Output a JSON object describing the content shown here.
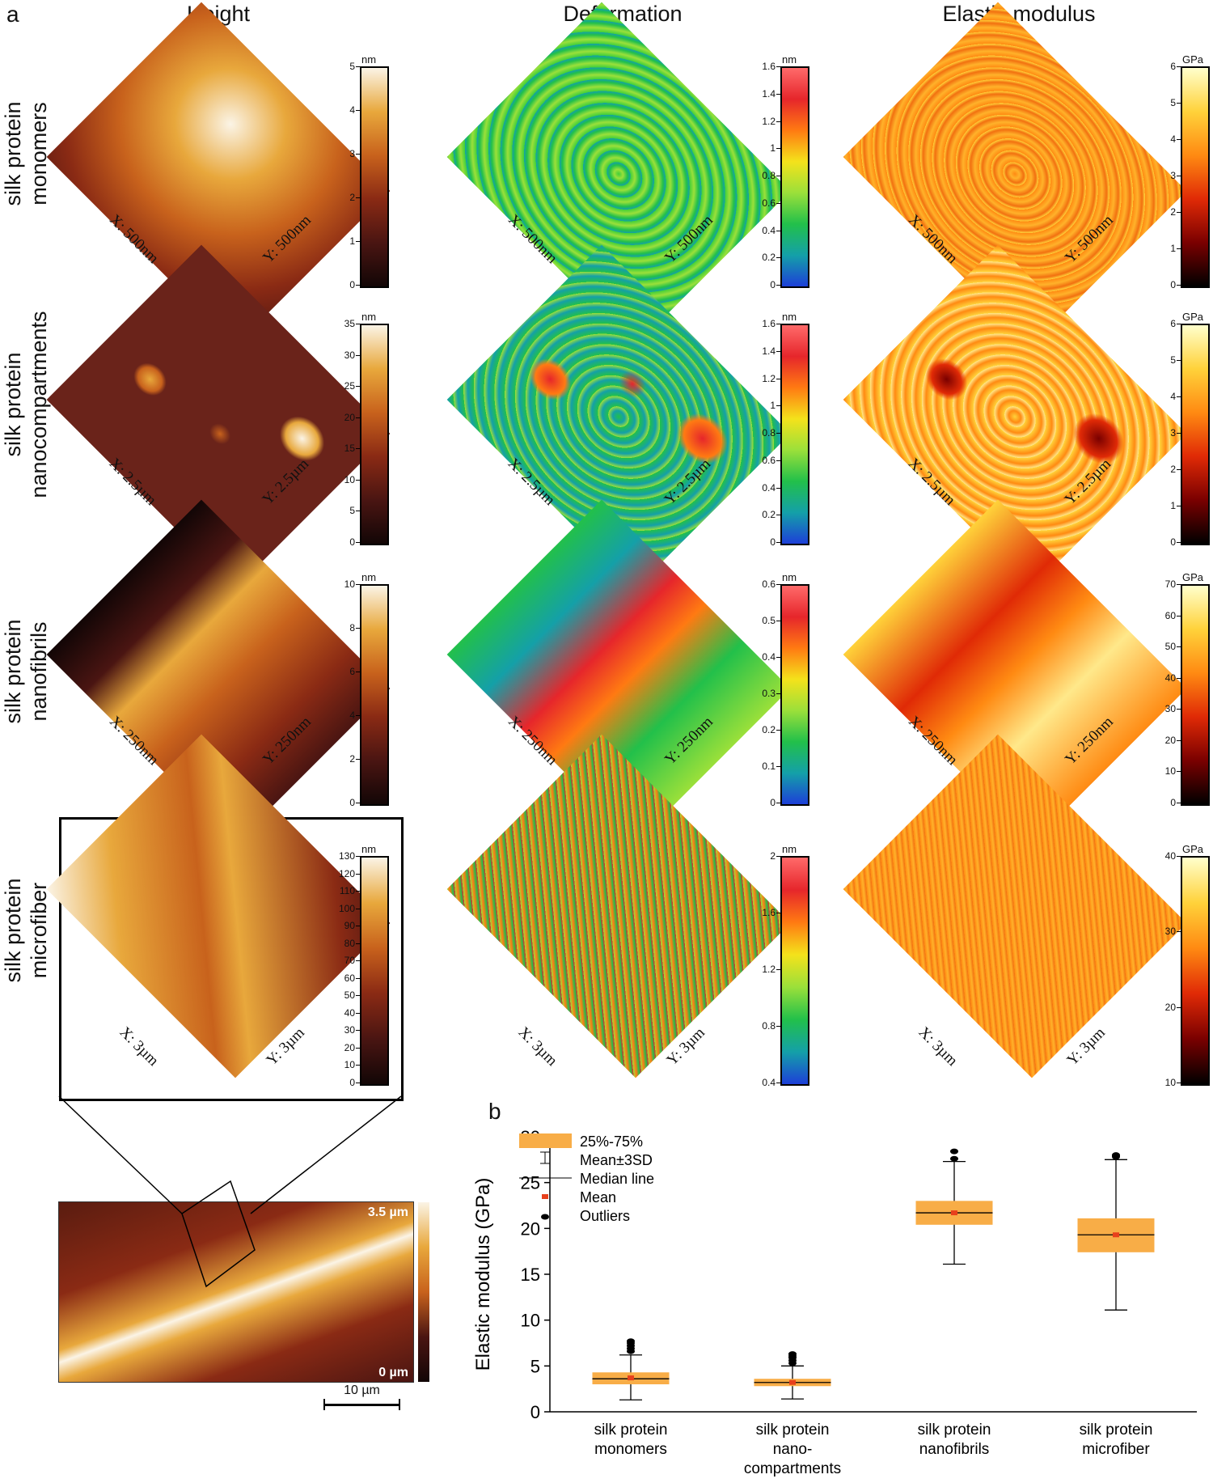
{
  "panel_a_label": "a",
  "panel_b_label": "b",
  "columns": [
    {
      "title": "Height"
    },
    {
      "title": "Deformation"
    },
    {
      "title": "Elastic modulus"
    }
  ],
  "rows": [
    {
      "label_line1": "silk protein",
      "label_line2": "monomers",
      "x_axis": "X: 500nm",
      "y_axis": "Y: 500nm",
      "height_bar": {
        "unit": "nm",
        "ticks": [
          "5",
          "4",
          "3",
          "2",
          "1",
          "0"
        ]
      },
      "deform_bar": {
        "unit": "nm",
        "ticks": [
          "1.6",
          "1.4",
          "1.2",
          "1",
          "0.8",
          "0.6",
          "0.4",
          "0.2",
          "0"
        ]
      },
      "modulus_bar": {
        "unit": "GPa",
        "ticks": [
          "6",
          "5",
          "4",
          "3",
          "2",
          "1",
          "0"
        ]
      }
    },
    {
      "label_line1": "silk protein",
      "label_line2": "nanocompartments",
      "x_axis": "X: 2.5µm",
      "y_axis": "Y: 2.5µm",
      "height_bar": {
        "unit": "nm",
        "ticks": [
          "35",
          "30",
          "25",
          "20",
          "15",
          "10",
          "5",
          "0"
        ]
      },
      "deform_bar": {
        "unit": "nm",
        "ticks": [
          "1.6",
          "1.4",
          "1.2",
          "1",
          "0.8",
          "0.6",
          "0.4",
          "0.2",
          "0"
        ]
      },
      "modulus_bar": {
        "unit": "GPa",
        "ticks": [
          "6",
          "5",
          "4",
          "3",
          "2",
          "1",
          "0"
        ]
      }
    },
    {
      "label_line1": "silk protein",
      "label_line2": "nanofibrils",
      "x_axis": "X: 250nm",
      "y_axis": "Y: 250nm",
      "height_bar": {
        "unit": "nm",
        "ticks": [
          "10",
          "8",
          "6",
          "4",
          "2",
          "0"
        ]
      },
      "deform_bar": {
        "unit": "nm",
        "ticks": [
          "0.6",
          "0.5",
          "0.4",
          "0.3",
          "0.2",
          "0.1",
          "0"
        ]
      },
      "modulus_bar": {
        "unit": "GPa",
        "ticks": [
          "70",
          "60",
          "50",
          "40",
          "30",
          "20",
          "10",
          "0"
        ]
      }
    },
    {
      "label_line1": "silk protein",
      "label_line2": "microfiber",
      "x_axis": "X: 3µm",
      "y_axis": "Y: 3µm",
      "height_bar": {
        "unit": "nm",
        "ticks": [
          "130",
          "120",
          "110",
          "100",
          "90",
          "80",
          "70",
          "60",
          "50",
          "40",
          "30",
          "20",
          "10",
          "0"
        ]
      },
      "deform_bar": {
        "unit": "nm",
        "ticks": [
          "2",
          "1.6",
          "1.2",
          "0.8",
          "0.4"
        ]
      },
      "modulus_bar": {
        "unit": "GPa",
        "ticks": [
          "40",
          "30",
          "20",
          "10"
        ]
      }
    }
  ],
  "microscopy": {
    "top_label": "3.5 µm",
    "bottom_label": "0 µm",
    "scale_bar": "10 µm"
  },
  "colors": {
    "height_map": [
      "#120606",
      "#4a1512",
      "#8a2a14",
      "#c8621c",
      "#e8a83c",
      "#fbf4e6"
    ],
    "deformation_map": [
      "#1d3fd8",
      "#14a0a8",
      "#22c04a",
      "#9be03a",
      "#f4e21b",
      "#ff7a12",
      "#e6262b",
      "#ff6a6a"
    ],
    "modulus_map": [
      "#000000",
      "#7a0000",
      "#e02a06",
      "#ff8a12",
      "#ffd23a",
      "#ffffcc"
    ],
    "box_fill": "#f8ad47",
    "mean_marker": "#e8401c"
  },
  "chart_data": {
    "type": "box",
    "ylabel": "Elastic modulus (GPa)",
    "ylim": [
      0,
      30
    ],
    "yticks": [
      0,
      5,
      10,
      15,
      20,
      25,
      30
    ],
    "categories": [
      {
        "line1": "silk protein",
        "line2": "monomers",
        "line3": ""
      },
      {
        "line1": "silk protein",
        "line2": "nano-",
        "line3": "compartments"
      },
      {
        "line1": "silk protein",
        "line2": "nanofibrils",
        "line3": ""
      },
      {
        "line1": "silk protein",
        "line2": "microfiber",
        "line3": ""
      }
    ],
    "boxes": [
      {
        "q1": 3.0,
        "median": 3.6,
        "q3": 4.3,
        "mean": 3.7,
        "whisker_low": 1.3,
        "whisker_high": 6.2,
        "outliers": [
          6.6,
          6.9,
          7.2,
          7.5,
          7.7
        ]
      },
      {
        "q1": 2.8,
        "median": 3.2,
        "q3": 3.6,
        "mean": 3.2,
        "whisker_low": 1.4,
        "whisker_high": 5.0,
        "outliers": [
          5.3,
          5.6,
          5.9,
          6.1,
          6.3
        ]
      },
      {
        "q1": 20.4,
        "median": 21.7,
        "q3": 23.0,
        "mean": 21.7,
        "whisker_low": 16.1,
        "whisker_high": 27.3,
        "outliers": [
          27.6,
          28.4
        ]
      },
      {
        "q1": 17.4,
        "median": 19.3,
        "q3": 21.1,
        "mean": 19.3,
        "whisker_low": 11.1,
        "whisker_high": 27.5,
        "outliers": [
          27.8,
          27.9,
          28.0
        ]
      }
    ],
    "legend": [
      {
        "key": "box",
        "label": "25%-75%"
      },
      {
        "key": "whisker",
        "label": "Mean±3SD"
      },
      {
        "key": "median",
        "label": "Median line"
      },
      {
        "key": "mean",
        "label": "Mean"
      },
      {
        "key": "outlier",
        "label": "Outliers"
      }
    ],
    "legend_placement": "top-left"
  }
}
